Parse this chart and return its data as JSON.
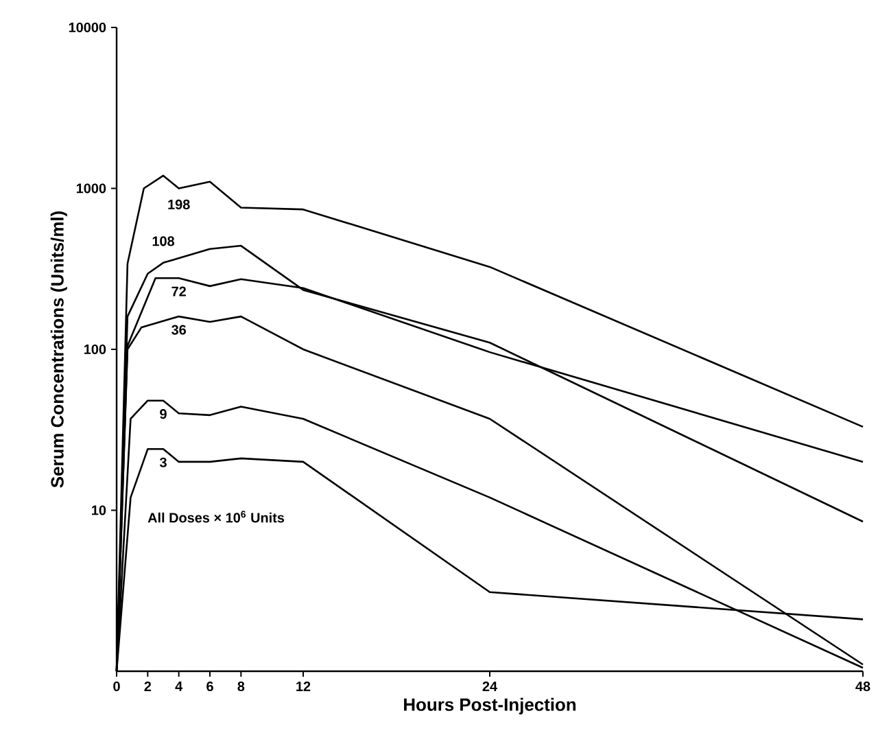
{
  "chart_data": {
    "type": "line",
    "xlabel": "Hours Post-Injection",
    "ylabel": "Serum Concentrations (Units/ml)",
    "log": "y",
    "xlim": [
      0,
      48
    ],
    "ylim": [
      1,
      10000
    ],
    "xticks": [
      0,
      2,
      4,
      6,
      8,
      12,
      24,
      48
    ],
    "yticks": [
      10,
      100,
      1000,
      10000
    ],
    "grid": false,
    "marker": "none",
    "line_style": "solid",
    "color": "#000000",
    "annotations": [
      "All Doses × 10$^{6}$ Units"
    ],
    "series": [
      {
        "name": "198",
        "x": [
          0,
          0.7,
          1.75,
          3,
          4,
          6,
          8,
          12,
          24,
          48
        ],
        "values": [
          1,
          340,
          1000,
          1200,
          1000,
          1100,
          760,
          740,
          325,
          33
        ]
      },
      {
        "name": "108",
        "x": [
          0,
          0.7,
          2,
          3,
          6,
          8,
          12,
          24,
          48
        ],
        "values": [
          1,
          160,
          295,
          345,
          420,
          440,
          234,
          110,
          8.5
        ]
      },
      {
        "name": "72",
        "x": [
          0,
          0.7,
          2.5,
          4,
          6,
          8,
          12,
          24,
          48
        ],
        "values": [
          1,
          105,
          277,
          277,
          247,
          273,
          240,
          96,
          20
        ]
      },
      {
        "name": "36",
        "x": [
          0,
          0.7,
          1.6,
          4,
          6,
          8,
          12,
          24,
          48
        ],
        "values": [
          1,
          100,
          137,
          160,
          148,
          160,
          100,
          37,
          1.1
        ]
      },
      {
        "name": "9",
        "x": [
          0,
          0.9,
          2,
          3,
          4,
          6,
          8,
          12,
          24,
          48
        ],
        "values": [
          1,
          37,
          48,
          48,
          40,
          39,
          44,
          37,
          12,
          1.05
        ]
      },
      {
        "name": "3",
        "x": [
          0,
          0.9,
          2,
          3,
          4,
          6,
          8,
          12,
          24,
          48
        ],
        "values": [
          1,
          12,
          24,
          24,
          20,
          20,
          21,
          20,
          3.1,
          2.1
        ]
      }
    ]
  }
}
